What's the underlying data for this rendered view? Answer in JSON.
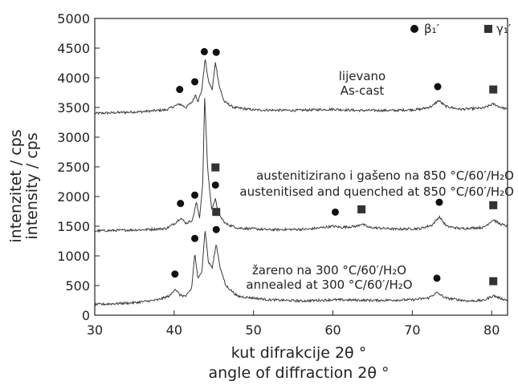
{
  "chart_data": {
    "type": "line",
    "xlabel": "kut difrakcije 2θ °",
    "xlabel_en": "angle of diffraction 2θ °",
    "ylabel": "intenzitet / cps",
    "ylabel_en": "intensity / cps",
    "xlim": [
      30,
      82
    ],
    "ylim": [
      0,
      5000
    ],
    "xticks": [
      30,
      40,
      50,
      60,
      70,
      80
    ],
    "yticks": [
      0,
      500,
      1000,
      1500,
      2000,
      2500,
      3000,
      3500,
      4000,
      4500,
      5000
    ],
    "legend": [
      {
        "label": "β₁′",
        "marker": "circle"
      },
      {
        "label": "γ₁′",
        "marker": "square"
      }
    ],
    "legend_position": "top-right",
    "series": [
      {
        "name": "lijevano / As-cast",
        "annotation": [
          "lijevano",
          "As-cast"
        ],
        "points": [
          [
            30,
            3400
          ],
          [
            36,
            3430
          ],
          [
            39,
            3460
          ],
          [
            40,
            3520
          ],
          [
            40.7,
            3560
          ],
          [
            41.5,
            3500
          ],
          [
            42.3,
            3600
          ],
          [
            42.7,
            3720
          ],
          [
            43.0,
            3600
          ],
          [
            43.5,
            3800
          ],
          [
            43.9,
            4330
          ],
          [
            44.3,
            3950
          ],
          [
            44.8,
            3800
          ],
          [
            45.2,
            4270
          ],
          [
            45.7,
            3850
          ],
          [
            46.3,
            3600
          ],
          [
            47.5,
            3500
          ],
          [
            50,
            3460
          ],
          [
            55,
            3450
          ],
          [
            60,
            3470
          ],
          [
            63,
            3450
          ],
          [
            68,
            3450
          ],
          [
            71,
            3470
          ],
          [
            72.5,
            3520
          ],
          [
            73.3,
            3620
          ],
          [
            74.2,
            3520
          ],
          [
            76,
            3470
          ],
          [
            79,
            3490
          ],
          [
            80.2,
            3560
          ],
          [
            81,
            3510
          ],
          [
            82,
            3470
          ]
        ],
        "circle_peaks": [
          40.7,
          42.6,
          43.8,
          45.3,
          73.2
        ],
        "square_peaks": [
          80.2
        ]
      },
      {
        "name": "austenitizirano i gašeno na 850 °C/60′/H₂O / austenitised and quenched at 850 °C/60′/H₂O",
        "annotation": [
          "austenitizirano i gašeno na 850 °C/60′/H₂O",
          "austenitised and quenched at 850 °C/60′/H₂O"
        ],
        "points": [
          [
            30,
            1420
          ],
          [
            36,
            1440
          ],
          [
            39,
            1460
          ],
          [
            40.2,
            1560
          ],
          [
            40.8,
            1640
          ],
          [
            41.5,
            1550
          ],
          [
            42.3,
            1600
          ],
          [
            42.8,
            1900
          ],
          [
            43.2,
            1650
          ],
          [
            43.6,
            2200
          ],
          [
            43.85,
            3700
          ],
          [
            44.2,
            2500
          ],
          [
            44.7,
            1800
          ],
          [
            45.2,
            1950
          ],
          [
            45.6,
            1700
          ],
          [
            46.5,
            1540
          ],
          [
            48,
            1470
          ],
          [
            52,
            1440
          ],
          [
            57,
            1450
          ],
          [
            60,
            1500
          ],
          [
            61,
            1480
          ],
          [
            63,
            1500
          ],
          [
            63.6,
            1540
          ],
          [
            64.5,
            1480
          ],
          [
            68,
            1450
          ],
          [
            71,
            1460
          ],
          [
            72.5,
            1520
          ],
          [
            73.4,
            1660
          ],
          [
            74.3,
            1500
          ],
          [
            76,
            1460
          ],
          [
            79,
            1480
          ],
          [
            80.2,
            1610
          ],
          [
            81,
            1540
          ],
          [
            82,
            1500
          ]
        ],
        "circle_peaks": [
          40.8,
          42.6,
          45.2,
          60.3,
          73.4
        ],
        "square_peaks": [
          45.2,
          63.6,
          80.2
        ]
      },
      {
        "name": "žareno na 300 °C/60′/H₂O / annealed at 300 °C/60′/H₂O",
        "annotation": [
          "žareno na 300 °C/60′/H₂O",
          "annealed at 300 °C/60′/H₂O"
        ],
        "points": [
          [
            30,
            180
          ],
          [
            35,
            210
          ],
          [
            38,
            260
          ],
          [
            39.5,
            330
          ],
          [
            40.1,
            450
          ],
          [
            40.7,
            340
          ],
          [
            41.5,
            320
          ],
          [
            42.2,
            450
          ],
          [
            42.6,
            1050
          ],
          [
            43.0,
            600
          ],
          [
            43.5,
            750
          ],
          [
            43.9,
            1450
          ],
          [
            44.3,
            900
          ],
          [
            44.8,
            800
          ],
          [
            45.3,
            1200
          ],
          [
            45.8,
            800
          ],
          [
            46.5,
            500
          ],
          [
            48,
            320
          ],
          [
            52,
            260
          ],
          [
            56,
            240
          ],
          [
            60,
            260
          ],
          [
            65,
            250
          ],
          [
            70,
            260
          ],
          [
            72,
            290
          ],
          [
            73.1,
            380
          ],
          [
            74.2,
            290
          ],
          [
            77,
            240
          ],
          [
            79,
            250
          ],
          [
            80.2,
            330
          ],
          [
            81,
            290
          ],
          [
            82,
            250
          ]
        ],
        "circle_peaks": [
          40.1,
          42.6,
          45.3,
          73.1
        ],
        "square_peaks": [
          45.3,
          80.2
        ]
      }
    ]
  }
}
